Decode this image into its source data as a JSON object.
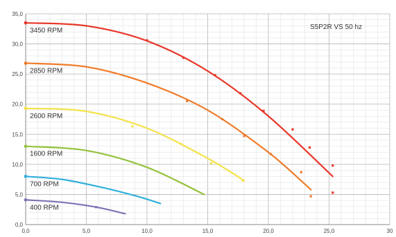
{
  "chart_data": {
    "type": "line",
    "title": "",
    "xlabel": "",
    "ylabel": "",
    "annotation": "S5P2R VS 50 hz",
    "xlim": [
      0,
      30
    ],
    "ylim": [
      0,
      35
    ],
    "grid": true,
    "x_ticks": [
      "0,0",
      "5,0",
      "10,0",
      "15,0",
      "20,0",
      "25,0",
      "30"
    ],
    "y_ticks": [
      "0,0",
      "5,0",
      "10,0",
      "15,0",
      "20,0",
      "25,0",
      "30,0",
      "35,0"
    ],
    "series": [
      {
        "name": "3450 RPM",
        "color": "#e8382a",
        "x": [
          0,
          5,
          10,
          15,
          20,
          25.3
        ],
        "y": [
          33.5,
          33.0,
          30.5,
          25.5,
          18.0,
          8.0
        ],
        "points": [
          [
            10.0,
            30.6
          ],
          [
            13.0,
            27.7
          ],
          [
            15.6,
            24.8
          ],
          [
            17.7,
            21.8
          ],
          [
            19.6,
            18.9
          ],
          [
            22.0,
            15.8
          ],
          [
            23.4,
            12.8
          ],
          [
            25.3,
            9.8
          ],
          [
            25.3,
            5.3
          ]
        ]
      },
      {
        "name": "2850 RPM",
        "color": "#f07b2a",
        "x": [
          0,
          5,
          10,
          15,
          20,
          23.5
        ],
        "y": [
          26.8,
          26.2,
          23.5,
          19.0,
          12.0,
          5.8
        ],
        "points": [
          [
            13.3,
            20.5
          ],
          [
            16.2,
            17.5
          ],
          [
            18.0,
            14.7
          ],
          [
            20.2,
            11.7
          ],
          [
            22.7,
            8.7
          ],
          [
            23.5,
            4.7
          ]
        ]
      },
      {
        "name": "2600 RPM",
        "color": "#f4e24a",
        "x": [
          0,
          5,
          10,
          15,
          18.0
        ],
        "y": [
          19.3,
          18.8,
          16.0,
          11.0,
          7.3
        ],
        "points": [
          [
            8.8,
            16.3
          ],
          [
            12.8,
            13.4
          ],
          [
            15.3,
            10.2
          ],
          [
            17.9,
            7.3
          ]
        ]
      },
      {
        "name": "1600 RPM",
        "color": "#95c23d",
        "x": [
          0,
          5,
          10,
          14.7
        ],
        "y": [
          13.0,
          12.3,
          9.5,
          5.0
        ],
        "points": []
      },
      {
        "name": "700 RPM",
        "color": "#2fb0dc",
        "x": [
          0,
          3,
          6,
          9,
          11.1
        ],
        "y": [
          8.0,
          7.5,
          6.3,
          4.8,
          3.5
        ],
        "points": []
      },
      {
        "name": "400 RPM",
        "color": "#7f73b5",
        "x": [
          0,
          3,
          5.8,
          8.2
        ],
        "y": [
          4.1,
          3.7,
          2.9,
          1.8
        ],
        "points": [
          [
            5.8,
            2.9
          ]
        ]
      }
    ]
  }
}
